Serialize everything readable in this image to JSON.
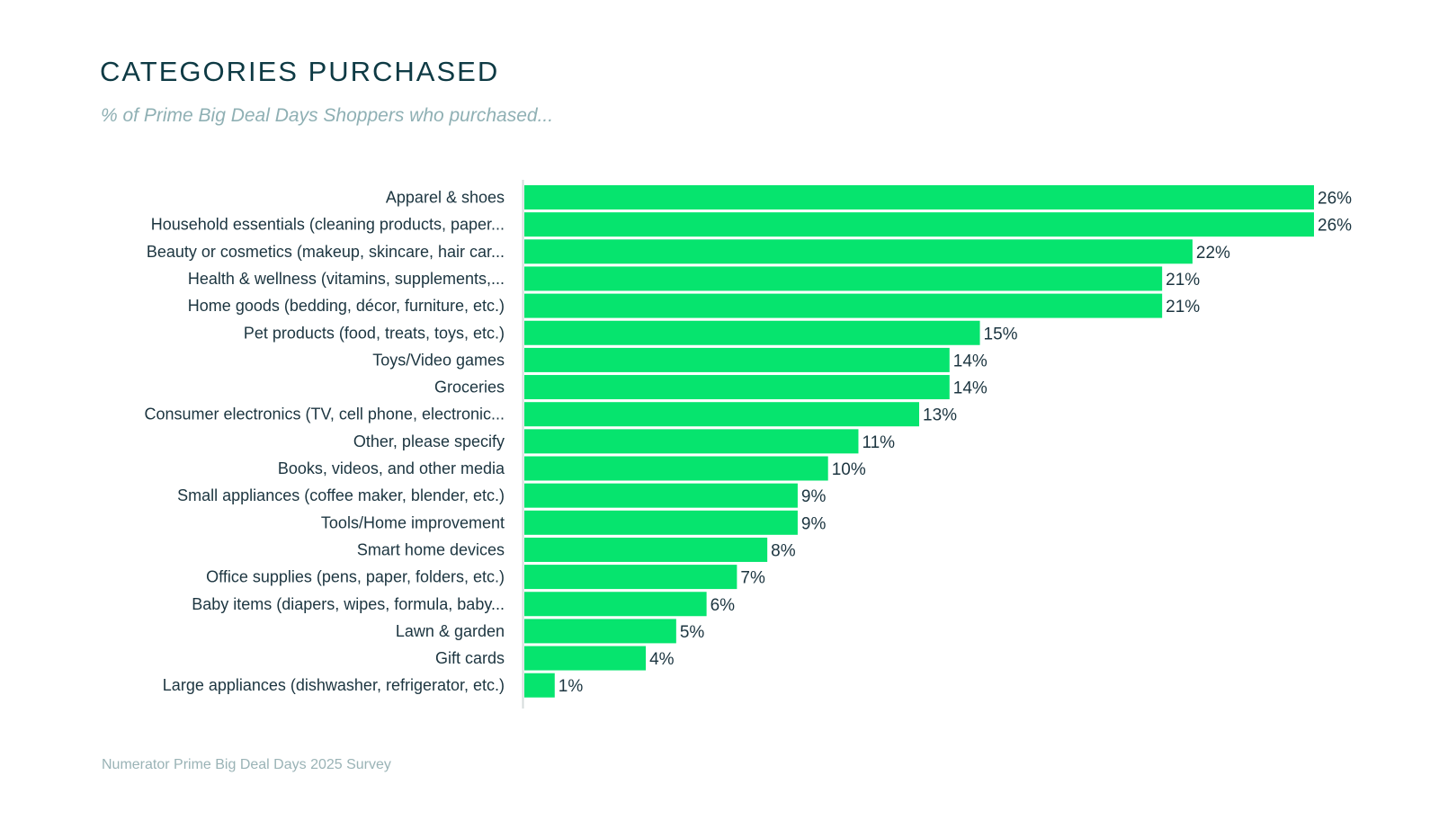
{
  "chart_data": {
    "type": "bar",
    "orientation": "horizontal",
    "title": "CATEGORIES PURCHASED",
    "subtitle": "% of Prime Big Deal Days Shoppers who purchased...",
    "source": "Numerator Prime Big Deal Days 2025 Survey",
    "xlabel": "",
    "ylabel": "",
    "xlim": [
      0,
      26
    ],
    "bar_color": "#06e46e",
    "categories": [
      "Apparel & shoes",
      "Household essentials (cleaning products, paper...",
      "Beauty or cosmetics (makeup, skincare, hair car...",
      "Health & wellness (vitamins, supplements,...",
      "Home goods (bedding, décor, furniture, etc.)",
      "Pet products (food, treats, toys, etc.)",
      "Toys/Video games",
      "Groceries",
      "Consumer electronics (TV, cell phone, electronic...",
      "Other, please specify",
      "Books, videos, and other media",
      "Small appliances (coffee maker, blender, etc.)",
      "Tools/Home improvement",
      "Smart home devices",
      "Office supplies (pens, paper, folders, etc.)",
      "Baby items (diapers, wipes, formula, baby...",
      "Lawn & garden",
      "Gift cards",
      "Large appliances (dishwasher, refrigerator, etc.)"
    ],
    "values": [
      26,
      26,
      22,
      21,
      21,
      15,
      14,
      14,
      13,
      11,
      10,
      9,
      9,
      8,
      7,
      6,
      5,
      4,
      1
    ],
    "value_labels": [
      "26%",
      "26%",
      "22%",
      "21%",
      "21%",
      "15%",
      "14%",
      "14%",
      "13%",
      "11%",
      "10%",
      "9%",
      "9%",
      "8%",
      "7%",
      "6%",
      "5%",
      "4%",
      "1%"
    ]
  }
}
